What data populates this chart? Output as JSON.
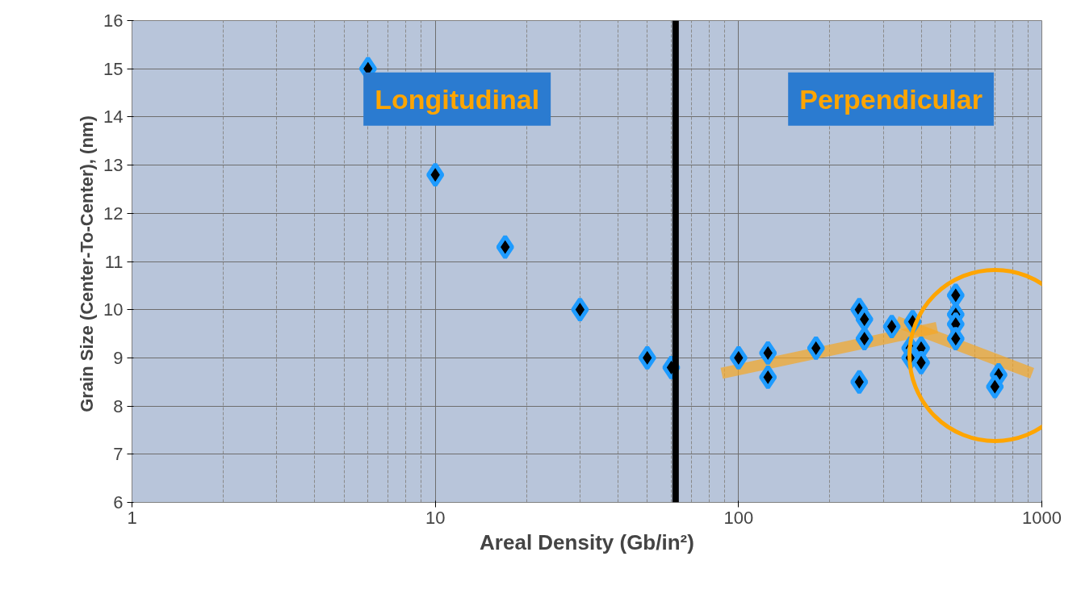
{
  "chart_data": {
    "type": "scatter",
    "xlabel": "Areal Density (Gb/in²)",
    "ylabel": "Grain Size (Center-To-Center),  (nm)",
    "log": "x",
    "xlim": [
      1,
      1000
    ],
    "xticks": [
      1,
      10,
      100,
      1000
    ],
    "ylim": [
      6,
      16
    ],
    "yticks": [
      6,
      7,
      8,
      9,
      10,
      11,
      12,
      13,
      14,
      15,
      16
    ],
    "grid": true,
    "marker": "diamond",
    "series": [
      {
        "color": "#1e9bff",
        "x": [
          6,
          10,
          17,
          30,
          50,
          60,
          100,
          125,
          125,
          180,
          250,
          250,
          260,
          260,
          320,
          375,
          368,
          368,
          400,
          400,
          520,
          520,
          520,
          520,
          720,
          700
        ],
        "values": [
          15.0,
          12.8,
          11.3,
          10.0,
          9.0,
          8.8,
          9.0,
          9.1,
          8.6,
          9.2,
          8.5,
          10.0,
          9.8,
          9.4,
          9.65,
          9.75,
          9.2,
          9.0,
          9.2,
          8.9,
          10.3,
          9.9,
          9.7,
          9.4,
          8.65,
          8.4
        ]
      },
      {
        "type": "line",
        "marker": "none",
        "color": "#f5a623",
        "x": [
          88,
          451
        ],
        "values": [
          8.68,
          9.63
        ]
      },
      {
        "type": "line",
        "marker": "none",
        "color": "#f5a623",
        "x": [
          332,
          929
        ],
        "values": [
          9.75,
          8.68
        ]
      }
    ],
    "ref_lines": [
      {
        "axis": "x",
        "value": 62,
        "color": "#000000"
      }
    ],
    "annotations": [
      "Longitudinal",
      "Perpendicular"
    ]
  }
}
